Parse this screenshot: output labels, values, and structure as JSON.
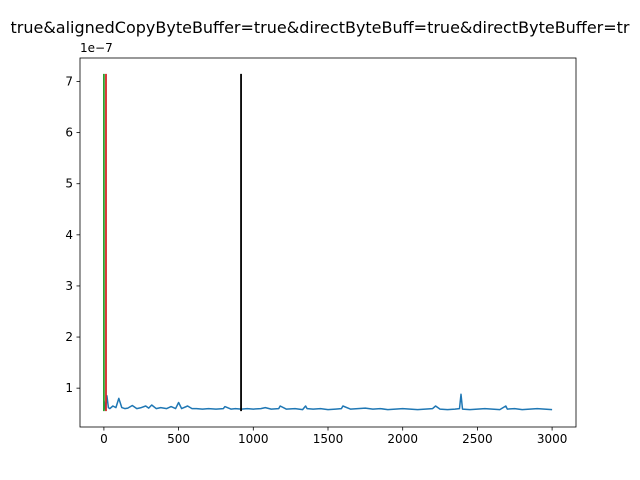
{
  "chart_data": {
    "type": "line",
    "title": "true&alignedCopyByteBuffer=true&directByteBuff=true&directByteBuffer=tr",
    "xlabel": "",
    "ylabel": "",
    "y_offset_label": "1e−7",
    "xlim": [
      -160,
      3160
    ],
    "ylim": [
      0.24,
      7.46
    ],
    "x_ticks": [
      0,
      500,
      1000,
      1500,
      2000,
      2500,
      3000
    ],
    "x_tick_labels": [
      "0",
      "500",
      "1000",
      "1500",
      "2000",
      "2500",
      "3000"
    ],
    "y_ticks": [
      1,
      2,
      3,
      4,
      5,
      6,
      7
    ],
    "y_tick_labels": [
      "1",
      "2",
      "3",
      "4",
      "5",
      "6",
      "7"
    ],
    "grid": false,
    "legend": "none",
    "series": [
      {
        "color": "#1f77b4",
        "x": [
          0,
          5,
          10,
          20,
          30,
          40,
          60,
          80,
          100,
          120,
          140,
          160,
          190,
          220,
          250,
          280,
          300,
          320,
          350,
          380,
          420,
          450,
          480,
          500,
          520,
          560,
          590,
          620,
          660,
          700,
          750,
          800,
          810,
          850,
          880,
          920,
          960,
          1000,
          1050,
          1080,
          1120,
          1170,
          1180,
          1220,
          1280,
          1330,
          1350,
          1360,
          1400,
          1450,
          1500,
          1550,
          1590,
          1600,
          1650,
          1700,
          1750,
          1800,
          1850,
          1900,
          1950,
          2000,
          2050,
          2100,
          2150,
          2200,
          2220,
          2250,
          2300,
          2350,
          2380,
          2390,
          2400,
          2450,
          2500,
          2550,
          2600,
          2650,
          2690,
          2700,
          2750,
          2800,
          2850,
          2900,
          2950,
          3000
        ],
        "y": [
          0.75,
          0.7,
          0.58,
          0.85,
          0.62,
          0.6,
          0.65,
          0.62,
          0.8,
          0.62,
          0.6,
          0.61,
          0.66,
          0.6,
          0.62,
          0.65,
          0.61,
          0.67,
          0.6,
          0.62,
          0.6,
          0.64,
          0.6,
          0.72,
          0.6,
          0.65,
          0.6,
          0.6,
          0.59,
          0.6,
          0.59,
          0.6,
          0.64,
          0.59,
          0.6,
          0.59,
          0.6,
          0.59,
          0.6,
          0.62,
          0.59,
          0.6,
          0.65,
          0.59,
          0.6,
          0.58,
          0.65,
          0.6,
          0.59,
          0.6,
          0.58,
          0.59,
          0.6,
          0.65,
          0.59,
          0.6,
          0.61,
          0.59,
          0.6,
          0.58,
          0.59,
          0.6,
          0.59,
          0.58,
          0.59,
          0.6,
          0.65,
          0.59,
          0.58,
          0.59,
          0.6,
          0.88,
          0.59,
          0.58,
          0.59,
          0.6,
          0.59,
          0.58,
          0.65,
          0.59,
          0.6,
          0.58,
          0.59,
          0.6,
          0.59,
          0.58
        ]
      }
    ],
    "vlines": [
      {
        "x": 0,
        "y0": 0.55,
        "y1": 7.15,
        "color": "#2ca02c"
      },
      {
        "x": 14,
        "y0": 0.55,
        "y1": 7.15,
        "color": "#d62728"
      },
      {
        "x": 918,
        "y0": 0.55,
        "y1": 7.15,
        "color": "#000000"
      }
    ]
  }
}
